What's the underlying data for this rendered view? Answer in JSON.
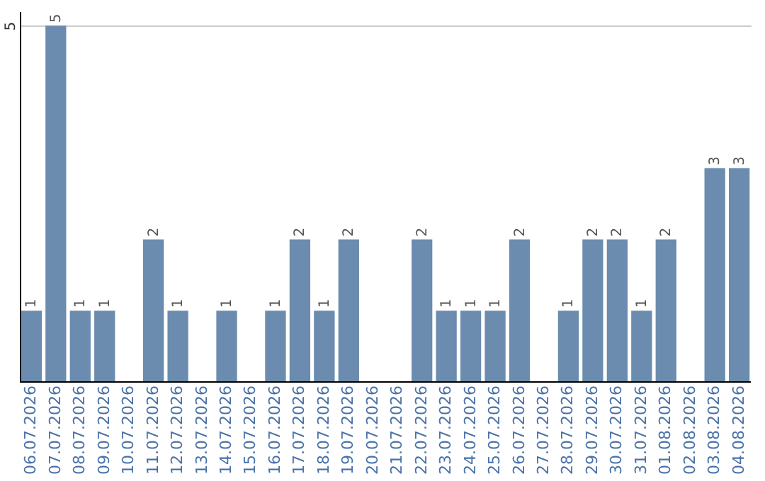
{
  "chart_data": {
    "type": "bar",
    "categories": [
      "06.07.2026",
      "07.07.2026",
      "08.07.2026",
      "09.07.2026",
      "10.07.2026",
      "11.07.2026",
      "12.07.2026",
      "13.07.2026",
      "14.07.2026",
      "15.07.2026",
      "16.07.2026",
      "17.07.2026",
      "18.07.2026",
      "19.07.2026",
      "20.07.2026",
      "21.07.2026",
      "22.07.2026",
      "23.07.2026",
      "24.07.2026",
      "25.07.2026",
      "26.07.2026",
      "27.07.2026",
      "28.07.2026",
      "29.07.2026",
      "30.07.2026",
      "31.07.2026",
      "01.08.2026",
      "02.08.2026",
      "03.08.2026",
      "04.08.2026"
    ],
    "values": [
      1,
      5,
      1,
      1,
      null,
      2,
      1,
      null,
      1,
      null,
      1,
      2,
      1,
      2,
      null,
      null,
      2,
      1,
      1,
      1,
      2,
      null,
      1,
      2,
      2,
      1,
      2,
      null,
      3,
      3
    ],
    "color": "#6b8cae",
    "ylim": [
      0,
      5.2
    ],
    "yticks": [
      5
    ],
    "grid": "y",
    "data_labels": true
  }
}
